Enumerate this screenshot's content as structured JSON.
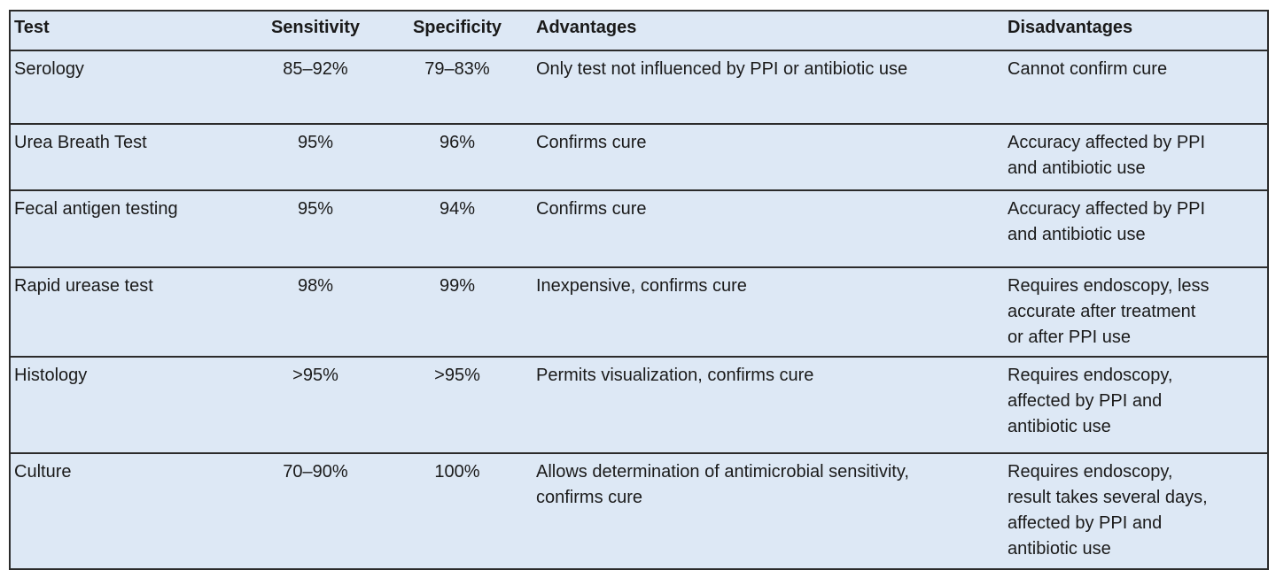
{
  "table": {
    "columns": [
      "Test",
      "Sensitivity",
      "Specificity",
      "Advantages",
      "Disadvantages"
    ],
    "rows": [
      {
        "test": "Serology",
        "sensitivity": "85–92%",
        "specificity": "79–83%",
        "advantages": [
          "Only test not influenced by PPI or antibiotic use"
        ],
        "disadvantages": [
          "Cannot confirm cure"
        ]
      },
      {
        "test": "Urea Breath Test",
        "sensitivity": "95%",
        "specificity": "96%",
        "advantages": [
          "Confirms cure"
        ],
        "disadvantages": [
          "Accuracy affected by PPI",
          "and antibiotic use"
        ]
      },
      {
        "test": "Fecal antigen testing",
        "sensitivity": "95%",
        "specificity": "94%",
        "advantages": [
          "Confirms cure"
        ],
        "disadvantages": [
          "Accuracy affected by PPI",
          "and antibiotic use"
        ]
      },
      {
        "test": "Rapid urease test",
        "sensitivity": "98%",
        "specificity": "99%",
        "advantages": [
          "Inexpensive, confirms cure"
        ],
        "disadvantages": [
          "Requires endoscopy, less",
          "accurate after treatment",
          "or after PPI use"
        ]
      },
      {
        "test": "Histology",
        "sensitivity": ">95%",
        "specificity": ">95%",
        "advantages": [
          "Permits visualization, confirms cure"
        ],
        "disadvantages": [
          "Requires endoscopy,",
          "affected by PPI and",
          "antibiotic use"
        ]
      },
      {
        "test": "Culture",
        "sensitivity": "70–90%",
        "specificity": "100%",
        "advantages": [
          "Allows determination of antimicrobial sensitivity,",
          "confirms cure"
        ],
        "disadvantages": [
          "Requires endoscopy,",
          "result takes several days,",
          "affected by PPI and",
          "antibiotic use"
        ]
      }
    ]
  }
}
